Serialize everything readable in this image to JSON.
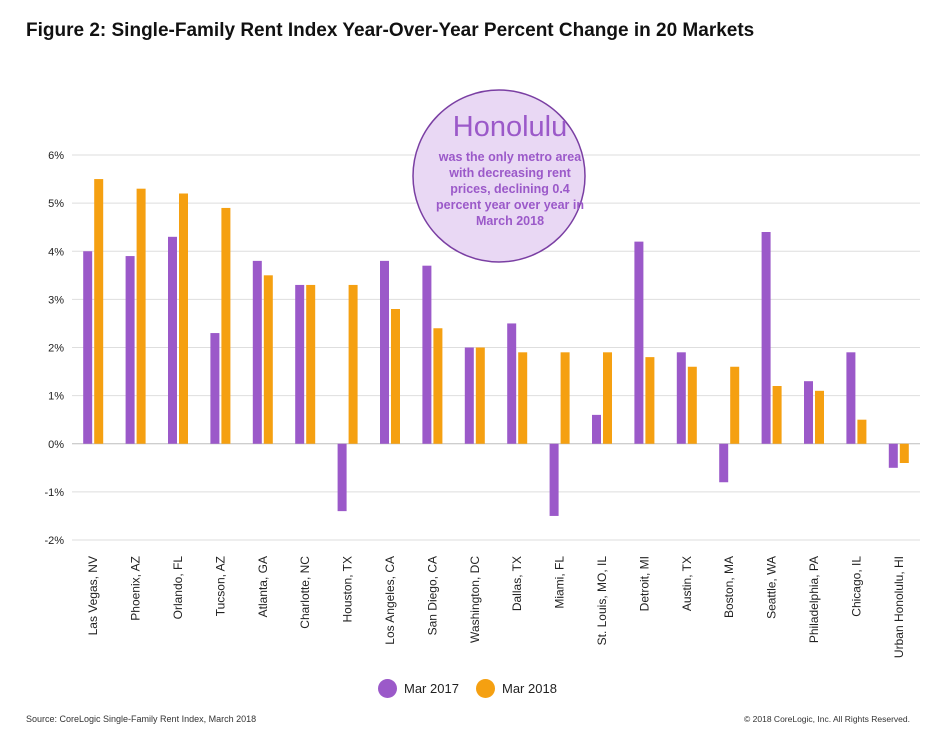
{
  "title": "Figure 2: Single-Family Rent Index Year-Over-Year Percent Change in 20 Markets",
  "callout": {
    "heading": "Honolulu",
    "lines": [
      "was the only metro area",
      "with decreasing rent",
      "prices, declining 0.4",
      "percent year over year in",
      "March 2018"
    ]
  },
  "footer": {
    "source": "Source: CoreLogic Single-Family Rent Index, March 2018",
    "copyright": "© 2018 CoreLogic, Inc. All Rights Reserved."
  },
  "colors": {
    "mar2017": "#9b59c9",
    "mar2018": "#f5a011",
    "grid": "#dedede",
    "callout_fill": "#e9d8f4",
    "callout_stroke": "#7a3fa3"
  },
  "chart_data": {
    "type": "bar",
    "ylim": [
      -2,
      6
    ],
    "yticks": [
      "-2%",
      "-1%",
      "0%",
      "1%",
      "2%",
      "3%",
      "4%",
      "5%",
      "6%"
    ],
    "grid": true,
    "legend_position": "bottom",
    "categories": [
      "Las Vegas, NV",
      "Phoenix, AZ",
      "Orlando, FL",
      "Tucson, AZ",
      "Atlanta, GA",
      "Charlotte, NC",
      "Houston, TX",
      "Los Angeles, CA",
      "San Diego, CA",
      "Washington, DC",
      "Dallas, TX",
      "Miami, FL",
      "St. Louis, MO, IL",
      "Detroit, MI",
      "Austin, TX",
      "Boston, MA",
      "Seattle, WA",
      "Philadelphia, PA",
      "Chicago, IL",
      "Urban Honolulu, HI"
    ],
    "series": [
      {
        "name": "Mar 2017",
        "values": [
          4.0,
          3.9,
          4.3,
          2.3,
          3.8,
          3.3,
          -1.4,
          3.8,
          3.7,
          2.0,
          2.5,
          -1.5,
          0.6,
          4.2,
          1.9,
          -0.8,
          4.4,
          1.3,
          1.9,
          -0.5
        ]
      },
      {
        "name": "Mar 2018",
        "values": [
          5.5,
          5.3,
          5.2,
          4.9,
          3.5,
          3.3,
          3.3,
          2.8,
          2.4,
          2.0,
          1.9,
          1.9,
          1.9,
          1.8,
          1.6,
          1.6,
          1.2,
          1.1,
          0.5,
          -0.4
        ]
      }
    ]
  }
}
